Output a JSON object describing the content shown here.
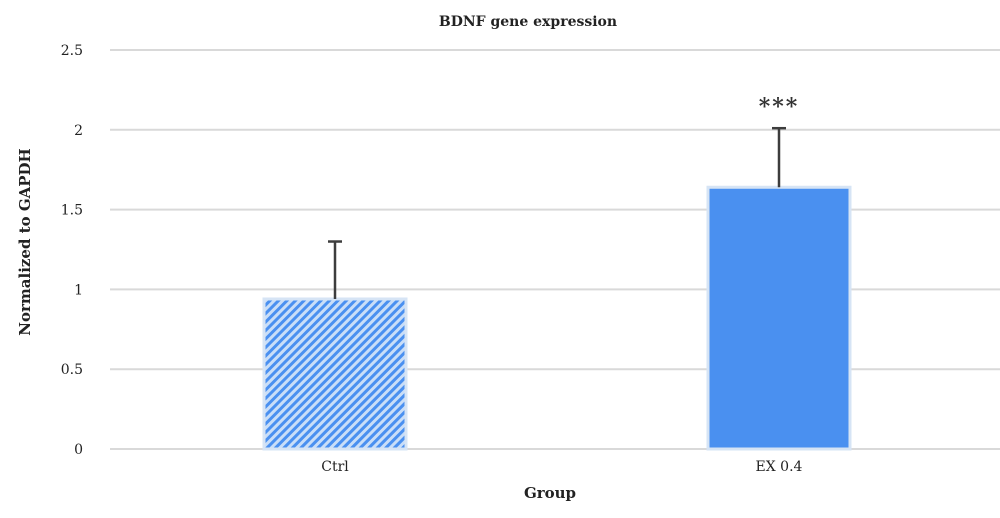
{
  "chart_data": {
    "type": "bar",
    "title": "BDNF gene expression",
    "xlabel": "Group",
    "ylabel": "Normalized to GAPDH",
    "categories": [
      "Ctrl",
      "EX 0.4"
    ],
    "values": [
      0.94,
      1.64
    ],
    "error_bars": [
      0.36,
      0.37
    ],
    "annotations": [
      "",
      "***"
    ],
    "ylim": [
      0,
      2.5
    ],
    "yticks": [
      "0",
      "0.5",
      "1",
      "1.5",
      "2",
      "2.5"
    ],
    "ytick_values": [
      0,
      0.5,
      1,
      1.5,
      2,
      2.5
    ],
    "grid": "horizontal",
    "bar_styles": [
      "diagonal-hatch",
      "solid"
    ],
    "colors": {
      "bar": "#4A90F0",
      "hatch_light": "#C9DEF8",
      "bar_outline": "#D6E4F5",
      "grid": "#D9D9D9",
      "error_bar": "#3D3D3D",
      "text": "#222222"
    }
  }
}
